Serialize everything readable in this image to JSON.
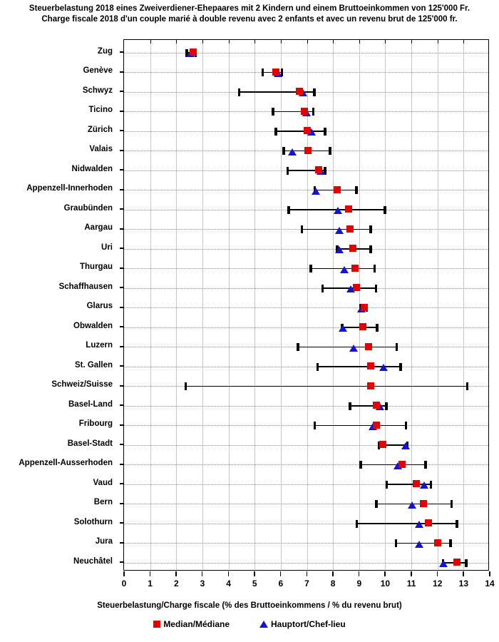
{
  "title": {
    "line1": "Steuerbelastung 2018 eines Zweiverdiener-Ehepaares mit 2 Kindern und einem Bruttoeinkommen von 125'000 Fr.",
    "line2": "Charge fiscale 2018 d'un couple marié à double revenu avec 2 enfants et avec un revenu brut de 125'000 fr."
  },
  "chart_data": {
    "type": "scatter",
    "subtype": "horizontal-range-dot-plot",
    "xlabel": "Steuerbelastung/Charge fiscale (% des Bruttoeinkommens / % du revenu brut)",
    "xlim": [
      0,
      14
    ],
    "xticks": [
      0,
      1,
      2,
      3,
      4,
      5,
      6,
      7,
      8,
      9,
      10,
      11,
      12,
      13,
      14
    ],
    "grid": {
      "vertical": "solid-light-gray",
      "horizontal": "dotted-per-row"
    },
    "legend_position": "bottom-center",
    "legend": [
      {
        "label": "Median/Médiane",
        "marker": "square",
        "color": "#e20202"
      },
      {
        "label": "Hauptort/Chef-lieu",
        "marker": "triangle-up",
        "color": "#1414cf"
      }
    ],
    "rows": [
      {
        "canton": "Zug",
        "min": 2.4,
        "max": 2.75,
        "median": 2.65,
        "capital": 2.55
      },
      {
        "canton": "Genève",
        "min": 5.3,
        "max": 6.05,
        "median": 5.8,
        "capital": 5.9
      },
      {
        "canton": "Schwyz",
        "min": 4.4,
        "max": 7.3,
        "median": 6.7,
        "capital": 6.85
      },
      {
        "canton": "Ticino",
        "min": 5.7,
        "max": 7.25,
        "median": 6.9,
        "capital": 7.0
      },
      {
        "canton": "Zürich",
        "min": 5.8,
        "max": 7.7,
        "median": 7.0,
        "capital": 7.2
      },
      {
        "canton": "Valais",
        "min": 6.1,
        "max": 7.9,
        "median": 7.05,
        "capital": 6.45
      },
      {
        "canton": "Nidwalden",
        "min": 6.25,
        "max": 7.7,
        "median": 7.45,
        "capital": 7.55
      },
      {
        "canton": "Appenzell-Innerhoden",
        "min": 7.3,
        "max": 8.9,
        "median": 8.15,
        "capital": 7.35
      },
      {
        "canton": "Graubünden",
        "min": 6.3,
        "max": 10.0,
        "median": 8.6,
        "capital": 8.2
      },
      {
        "canton": "Aargau",
        "min": 6.8,
        "max": 9.45,
        "median": 8.65,
        "capital": 8.25
      },
      {
        "canton": "Uri",
        "min": 8.15,
        "max": 9.45,
        "median": 8.75,
        "capital": 8.25
      },
      {
        "canton": "Thurgau",
        "min": 7.15,
        "max": 9.6,
        "median": 8.85,
        "capital": 8.45
      },
      {
        "canton": "Schaffhausen",
        "min": 7.6,
        "max": 9.65,
        "median": 8.9,
        "capital": 8.7
      },
      {
        "canton": "Glarus",
        "min": 9.05,
        "max": 9.3,
        "median": 9.2,
        "capital": 9.1
      },
      {
        "canton": "Obwalden",
        "min": 8.35,
        "max": 9.7,
        "median": 9.15,
        "capital": 8.4
      },
      {
        "canton": "Luzern",
        "min": 6.65,
        "max": 10.45,
        "median": 9.35,
        "capital": 8.8
      },
      {
        "canton": "St. Gallen",
        "min": 7.4,
        "max": 10.6,
        "median": 9.45,
        "capital": 9.95
      },
      {
        "canton": "Schweiz/Suisse",
        "min": 2.35,
        "max": 13.15,
        "median": 9.45,
        "capital": null
      },
      {
        "canton": "Basel-Land",
        "min": 8.65,
        "max": 10.05,
        "median": 9.65,
        "capital": 9.8
      },
      {
        "canton": "Fribourg",
        "min": 7.3,
        "max": 10.8,
        "median": 9.65,
        "capital": 9.55
      },
      {
        "canton": "Basel-Stadt",
        "min": 9.75,
        "max": 10.85,
        "median": 9.9,
        "capital": 10.8
      },
      {
        "canton": "Appenzell-Ausserhoden",
        "min": 9.05,
        "max": 11.55,
        "median": 10.65,
        "capital": 10.5
      },
      {
        "canton": "Vaud",
        "min": 10.05,
        "max": 11.75,
        "median": 11.2,
        "capital": 11.5
      },
      {
        "canton": "Bern",
        "min": 9.65,
        "max": 12.55,
        "median": 11.45,
        "capital": 11.05
      },
      {
        "canton": "Solothurn",
        "min": 8.9,
        "max": 12.75,
        "median": 11.65,
        "capital": 11.3
      },
      {
        "canton": "Jura",
        "min": 10.4,
        "max": 12.5,
        "median": 12.0,
        "capital": 11.3
      },
      {
        "canton": "Neuchâtel",
        "min": 12.2,
        "max": 13.1,
        "median": 12.75,
        "capital": 12.25
      }
    ]
  },
  "colors": {
    "median": "#e20202",
    "capital": "#1414cf",
    "gridline": "#c9c9c9",
    "row_dotted": "#8f8f8f",
    "axis": "#000000",
    "background": "#ffffff"
  }
}
